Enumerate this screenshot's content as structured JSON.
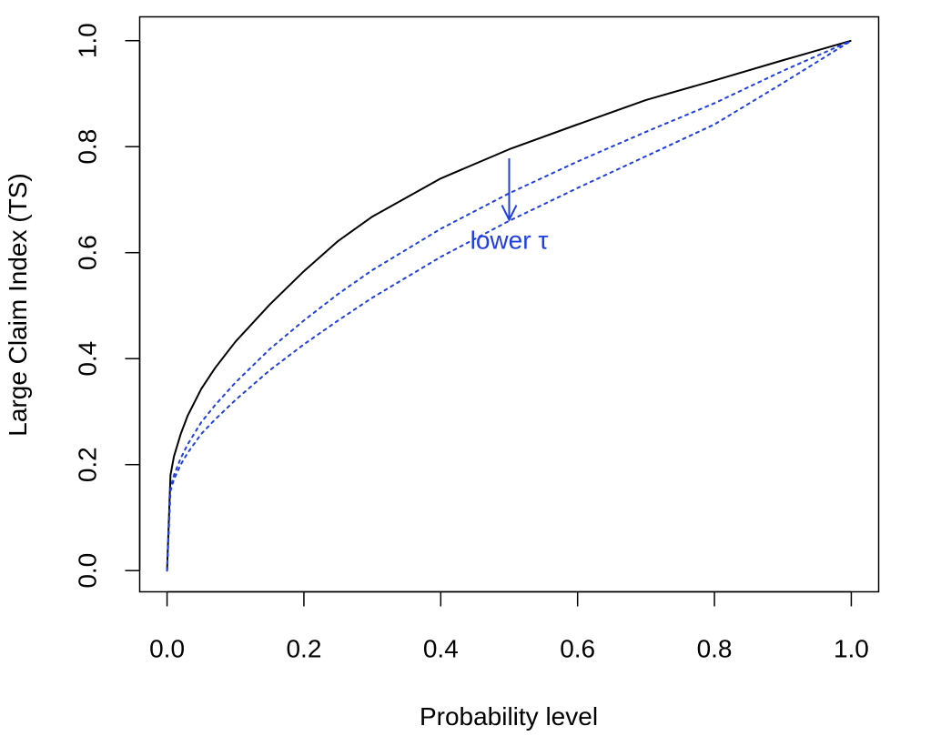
{
  "chart_data": {
    "type": "line",
    "title": "",
    "xlabel": "Probability level",
    "ylabel": "Large Claim Index (TS)",
    "xlim": [
      -0.04,
      1.04
    ],
    "ylim": [
      -0.04,
      1.045
    ],
    "x_ticks": [
      0,
      0.2,
      0.4,
      0.6,
      0.8,
      1
    ],
    "x_tick_labels": [
      "0.0",
      "0.2",
      "0.4",
      "0.6",
      "0.8",
      "1.0"
    ],
    "y_ticks": [
      0,
      0.2,
      0.4,
      0.6,
      0.8,
      1
    ],
    "y_tick_labels": [
      "0.0",
      "0.2",
      "0.4",
      "0.6",
      "0.8",
      "1.0"
    ],
    "grid": false,
    "legend": "none",
    "series": [
      {
        "color": "#000000",
        "style": "solid",
        "x": [
          0,
          0.005,
          0.01,
          0.02,
          0.03,
          0.05,
          0.07,
          0.1,
          0.15,
          0.2,
          0.25,
          0.3,
          0.4,
          0.5,
          0.6,
          0.7,
          0.8,
          0.9,
          1
        ],
        "y": [
          0,
          0.18,
          0.215,
          0.258,
          0.292,
          0.343,
          0.382,
          0.432,
          0.502,
          0.565,
          0.622,
          0.668,
          0.74,
          0.795,
          0.842,
          0.888,
          0.925,
          0.963,
          1
        ]
      },
      {
        "color": "#1f3fe0",
        "style": "dotted",
        "x": [
          0,
          0.005,
          0.01,
          0.02,
          0.03,
          0.05,
          0.07,
          0.1,
          0.15,
          0.2,
          0.25,
          0.3,
          0.4,
          0.5,
          0.6,
          0.7,
          0.8,
          0.9,
          1
        ],
        "y": [
          0,
          0.155,
          0.18,
          0.212,
          0.238,
          0.28,
          0.312,
          0.355,
          0.418,
          0.472,
          0.522,
          0.567,
          0.645,
          0.712,
          0.772,
          0.828,
          0.882,
          0.943,
          1
        ]
      },
      {
        "color": "#1f3fe0",
        "style": "dotted",
        "x": [
          0,
          0.005,
          0.01,
          0.02,
          0.03,
          0.05,
          0.07,
          0.1,
          0.15,
          0.2,
          0.25,
          0.3,
          0.4,
          0.5,
          0.6,
          0.7,
          0.8,
          0.9,
          1
        ],
        "y": [
          0,
          0.15,
          0.172,
          0.2,
          0.222,
          0.258,
          0.285,
          0.322,
          0.378,
          0.427,
          0.472,
          0.515,
          0.592,
          0.66,
          0.722,
          0.782,
          0.842,
          0.92,
          1
        ]
      }
    ],
    "annotations": [
      {
        "text": "lower τ",
        "color": "#1f3fe0",
        "x": 0.5,
        "y": 0.607,
        "arrow": {
          "x": 0.5,
          "y_from": 0.778,
          "y_to": 0.662
        }
      }
    ]
  }
}
